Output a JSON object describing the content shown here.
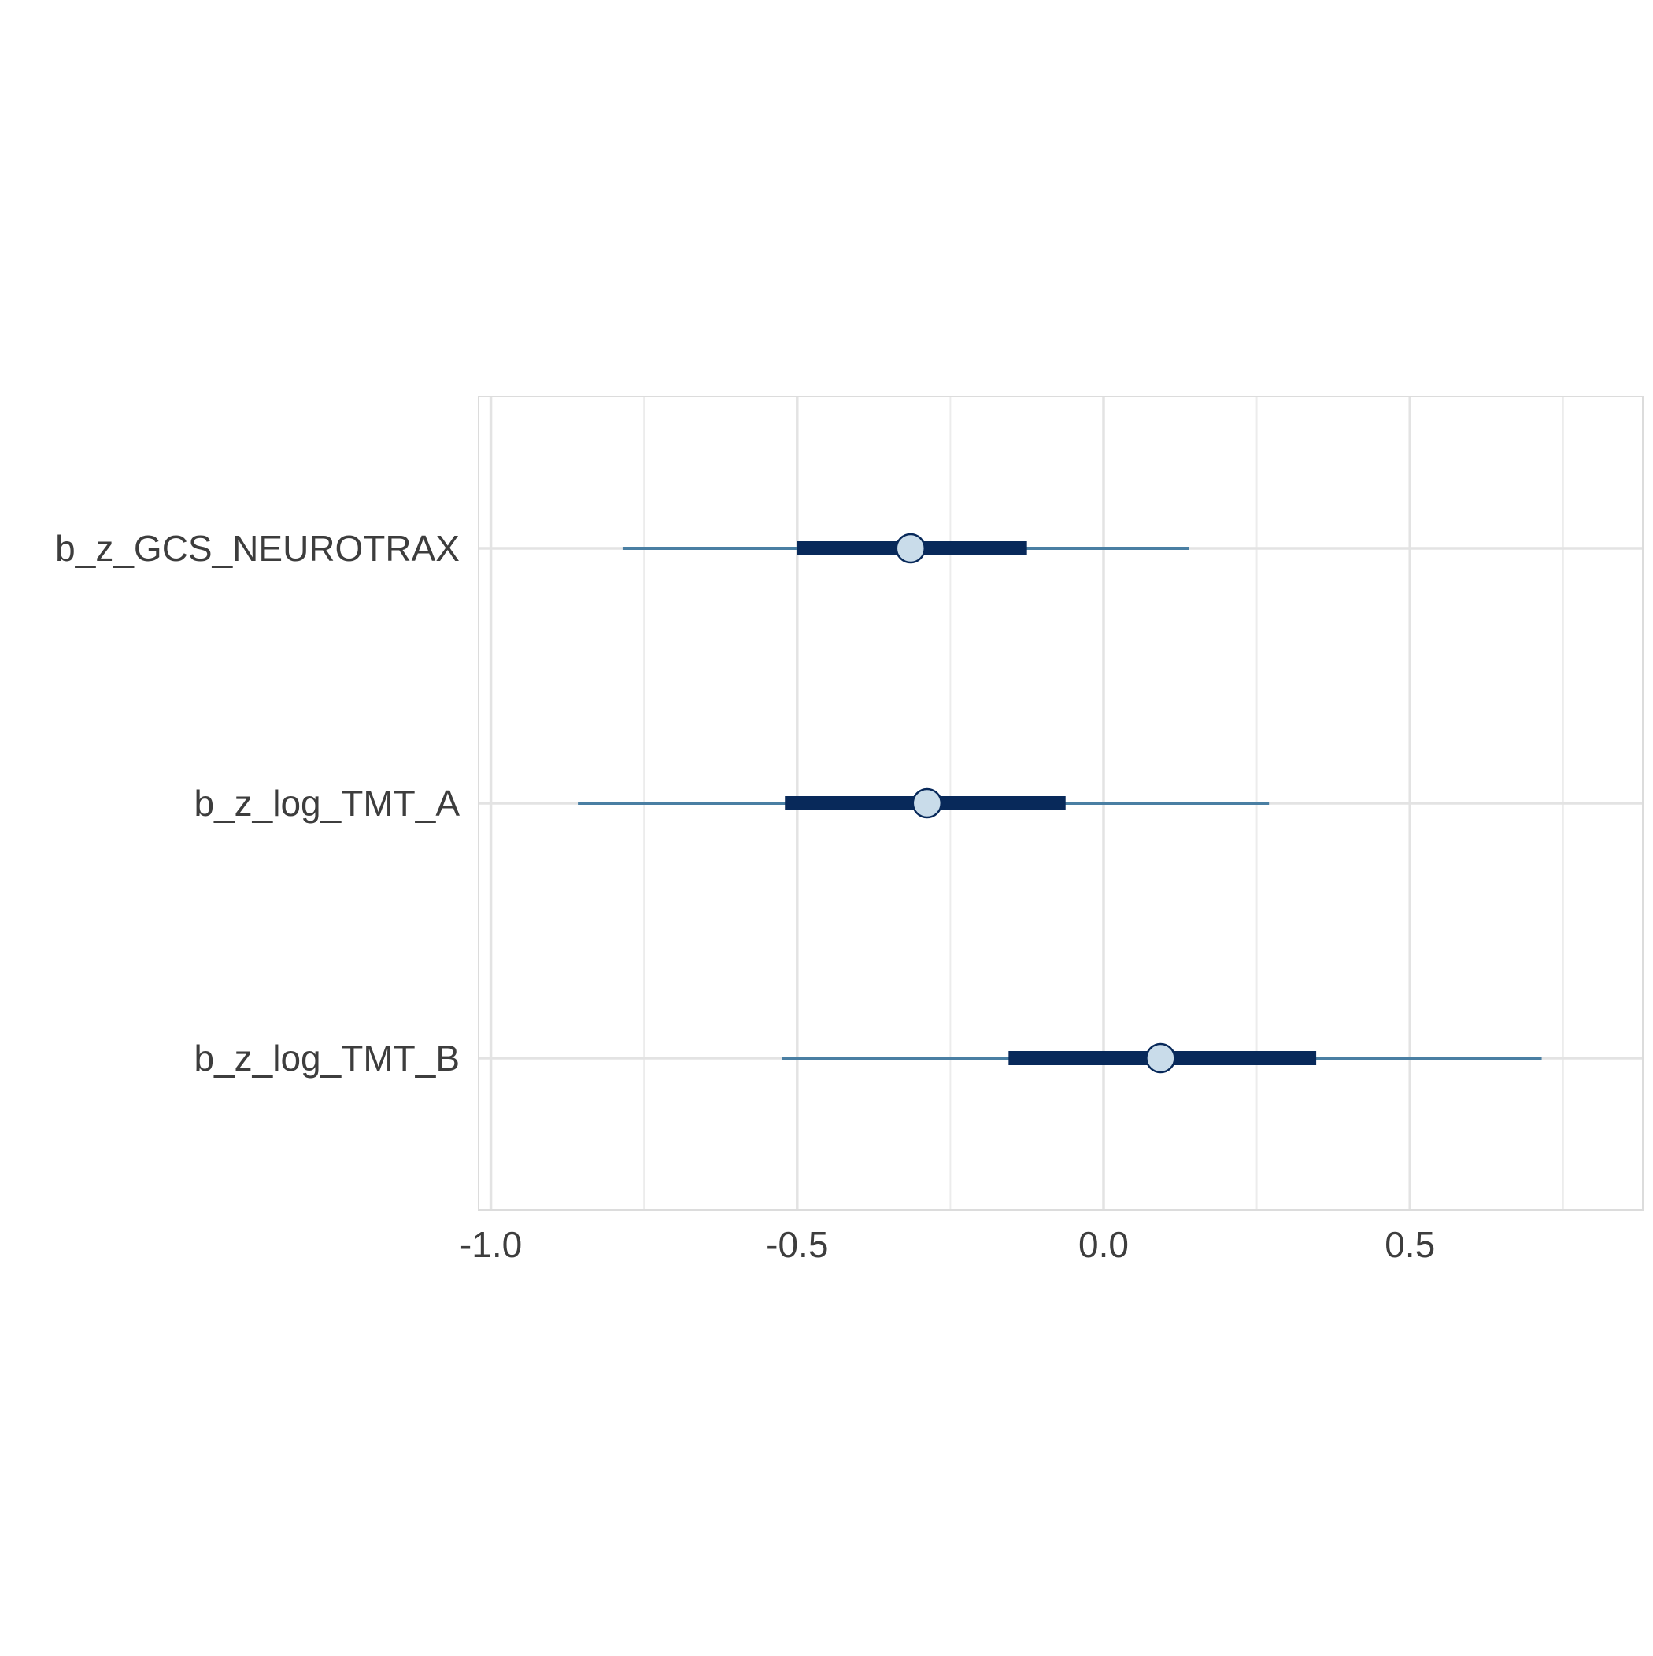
{
  "chart_data": {
    "type": "interval-plot",
    "title": "",
    "xlabel": "",
    "ylabel": "",
    "xlim": [
      -1.02,
      0.88
    ],
    "x_ticks": [
      -1.0,
      -0.5,
      0.0,
      0.5
    ],
    "x_tick_labels": [
      "-1.0",
      "-0.5",
      "0.0",
      "0.5"
    ],
    "grid": true,
    "colors": {
      "outer_interval": "#4a7fa3",
      "inner_interval": "#08295a",
      "point_fill": "#c9dcea",
      "point_stroke": "#08295a",
      "grid_major": "#e3e3e3",
      "grid_minor": "#ececec",
      "frame": "#dcdcdc"
    },
    "parameters": [
      {
        "name": "b_z_GCS_NEUROTRAX",
        "estimate": -0.315,
        "inner": [
          -0.5,
          -0.125
        ],
        "outer": [
          -0.785,
          0.14
        ]
      },
      {
        "name": "b_z_log_TMT_A",
        "estimate": -0.288,
        "inner": [
          -0.52,
          -0.062
        ],
        "outer": [
          -0.858,
          0.27
        ]
      },
      {
        "name": "b_z_log_TMT_B",
        "estimate": 0.093,
        "inner": [
          -0.155,
          0.347
        ],
        "outer": [
          -0.525,
          0.715
        ]
      }
    ]
  }
}
